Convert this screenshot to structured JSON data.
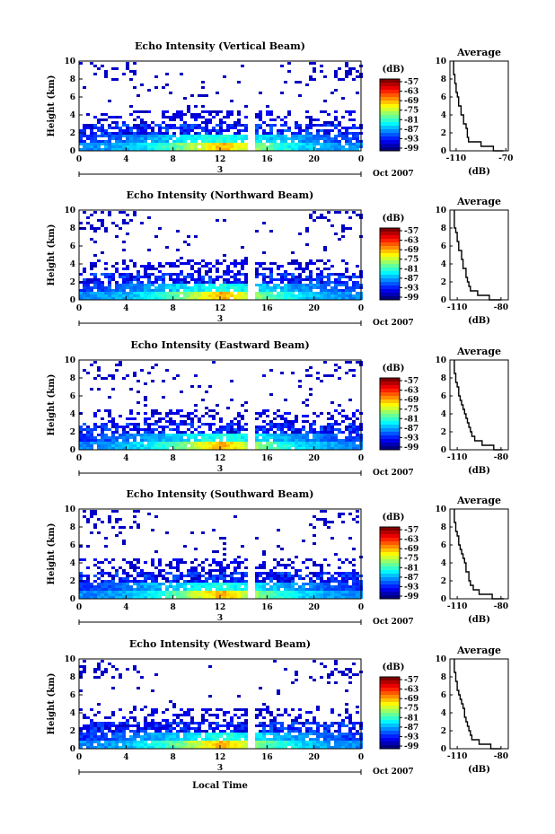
{
  "chart_data": [
    {
      "type": "heatmap",
      "title": "Echo Intensity (Vertical Beam)",
      "xlabel": "",
      "ylabel": "Height (km)",
      "xlim": [
        0,
        24
      ],
      "ylim": [
        0,
        10
      ],
      "xticks": [
        "0",
        "4",
        "8",
        "12",
        "16",
        "20",
        "0"
      ],
      "yticks": [
        "0",
        "2",
        "4",
        "6",
        "8",
        "10"
      ],
      "day_marker": "3",
      "date_label": "Oct 2007",
      "colorbar": {
        "unit": "(dB)",
        "ticks": [
          "-57",
          "-63",
          "-69",
          "-75",
          "-81",
          "-87",
          "-93",
          "-99"
        ]
      },
      "average_profile": {
        "title": "Average",
        "xlabel": "(dB)",
        "xticks": [
          "-110",
          "-70"
        ],
        "xlim": [
          -115,
          -68
        ],
        "yticks": [
          "0",
          "2",
          "4",
          "6",
          "8",
          "10"
        ],
        "heights": [
          0,
          0.5,
          1,
          1.5,
          2,
          2.5,
          3,
          3.5,
          4,
          4.5,
          5,
          5.5,
          6,
          6.5,
          7,
          7.5,
          8,
          8.5,
          9,
          9.5,
          10
        ],
        "values_db": [
          -72,
          -80,
          -90,
          -100,
          -101,
          -101,
          -102,
          -104,
          -104,
          -106,
          -106,
          -108,
          -108,
          -109,
          -110,
          -110,
          -111,
          -111,
          -112,
          -112,
          -112
        ]
      },
      "gap_hour": 14.5,
      "noise_top_heights_km": [
        8,
        10
      ]
    },
    {
      "type": "heatmap",
      "title": "Echo Intensity (Northward Beam)",
      "xlabel": "",
      "ylabel": "Height (km)",
      "xlim": [
        0,
        24
      ],
      "ylim": [
        0,
        10
      ],
      "xticks": [
        "0",
        "4",
        "8",
        "12",
        "16",
        "20",
        "0"
      ],
      "yticks": [
        "0",
        "2",
        "4",
        "6",
        "8",
        "10"
      ],
      "day_marker": "3",
      "date_label": "Oct 2007",
      "colorbar": {
        "unit": "(dB)",
        "ticks": [
          "-57",
          "-63",
          "-69",
          "-75",
          "-81",
          "-87",
          "-93",
          "-99"
        ]
      },
      "average_profile": {
        "title": "Average",
        "xlabel": "(dB)",
        "xticks": [
          "-110",
          "-80"
        ],
        "xlim": [
          -115,
          -75
        ],
        "yticks": [
          "0",
          "2",
          "4",
          "6",
          "8",
          "10"
        ],
        "heights": [
          0,
          0.5,
          1,
          1.5,
          2,
          2.5,
          3,
          3.5,
          4,
          4.5,
          5,
          5.5,
          6,
          6.5,
          7,
          7.5,
          8,
          8.5,
          9,
          9.5,
          10
        ],
        "values_db": [
          -80,
          -88,
          -96,
          -101,
          -102,
          -103,
          -104,
          -104,
          -106,
          -106,
          -107,
          -107,
          -109,
          -109,
          -110,
          -110,
          -111,
          -112,
          -112,
          -112,
          -112
        ]
      },
      "gap_hour": 14.5,
      "noise_top_heights_km": [
        8,
        10
      ]
    },
    {
      "type": "heatmap",
      "title": "Echo Intensity (Eastward Beam)",
      "xlabel": "",
      "ylabel": "Height (km)",
      "xlim": [
        0,
        24
      ],
      "ylim": [
        0,
        10
      ],
      "xticks": [
        "0",
        "4",
        "8",
        "12",
        "16",
        "20",
        "0"
      ],
      "yticks": [
        "0",
        "2",
        "4",
        "6",
        "8",
        "10"
      ],
      "day_marker": "3",
      "date_label": "Oct 2007",
      "colorbar": {
        "unit": "(dB)",
        "ticks": [
          "-57",
          "-63",
          "-69",
          "-75",
          "-81",
          "-87",
          "-93",
          "-99"
        ]
      },
      "average_profile": {
        "title": "Average",
        "xlabel": "(dB)",
        "xticks": [
          "-110",
          "-80"
        ],
        "xlim": [
          -115,
          -75
        ],
        "yticks": [
          "0",
          "2",
          "4",
          "6",
          "8",
          "10"
        ],
        "heights": [
          0,
          0.5,
          1,
          1.5,
          2,
          2.5,
          3,
          3.5,
          4,
          4.5,
          5,
          5.5,
          6,
          6.5,
          7,
          7.5,
          8,
          8.5,
          9,
          9.5,
          10
        ],
        "values_db": [
          -79,
          -85,
          -93,
          -98,
          -100,
          -101,
          -102,
          -103,
          -104,
          -105,
          -106,
          -107,
          -108,
          -109,
          -109,
          -110,
          -111,
          -111,
          -112,
          -112,
          -112
        ]
      },
      "gap_hour": 14.5,
      "noise_top_heights_km": [
        8,
        10
      ]
    },
    {
      "type": "heatmap",
      "title": "Echo Intensity (Southward Beam)",
      "xlabel": "",
      "ylabel": "Height (km)",
      "xlim": [
        0,
        24
      ],
      "ylim": [
        0,
        10
      ],
      "xticks": [
        "0",
        "4",
        "8",
        "12",
        "16",
        "20",
        "0"
      ],
      "yticks": [
        "0",
        "2",
        "4",
        "6",
        "8",
        "10"
      ],
      "day_marker": "3",
      "date_label": "Oct 2007",
      "colorbar": {
        "unit": "(dB)",
        "ticks": [
          "-57",
          "-63",
          "-69",
          "-75",
          "-81",
          "-87",
          "-93",
          "-99"
        ]
      },
      "average_profile": {
        "title": "Average",
        "xlabel": "(dB)",
        "xticks": [
          "-110",
          "-80"
        ],
        "xlim": [
          -115,
          -75
        ],
        "yticks": [
          "0",
          "2",
          "4",
          "6",
          "8",
          "10"
        ],
        "heights": [
          0,
          0.5,
          1,
          1.5,
          2,
          2.5,
          3,
          3.5,
          4,
          4.5,
          5,
          5.5,
          6,
          6.5,
          7,
          7.5,
          8,
          8.5,
          9,
          9.5,
          10
        ],
        "values_db": [
          -78,
          -86,
          -95,
          -99,
          -101,
          -102,
          -102,
          -104,
          -104,
          -105,
          -106,
          -107,
          -108,
          -109,
          -109,
          -110,
          -111,
          -111,
          -112,
          -112,
          -112
        ]
      },
      "gap_hour": 14.5,
      "noise_top_heights_km": [
        8,
        10
      ]
    },
    {
      "type": "heatmap",
      "title": "Echo Intensity (Westward Beam)",
      "xlabel": "Local Time",
      "ylabel": "Height (km)",
      "xlim": [
        0,
        24
      ],
      "ylim": [
        0,
        10
      ],
      "xticks": [
        "0",
        "4",
        "8",
        "12",
        "16",
        "20",
        "0"
      ],
      "yticks": [
        "0",
        "2",
        "4",
        "6",
        "8",
        "10"
      ],
      "day_marker": "3",
      "date_label": "Oct 2007",
      "colorbar": {
        "unit": "(dB)",
        "ticks": [
          "-57",
          "-63",
          "-69",
          "-75",
          "-81",
          "-87",
          "-93",
          "-99"
        ]
      },
      "average_profile": {
        "title": "Average",
        "xlabel": "(dB)",
        "xticks": [
          "-110",
          "-80"
        ],
        "xlim": [
          -115,
          -75
        ],
        "yticks": [
          "0",
          "2",
          "4",
          "6",
          "8",
          "10"
        ],
        "heights": [
          0,
          0.5,
          1,
          1.5,
          2,
          2.5,
          3,
          3.5,
          4,
          4.5,
          5,
          5.5,
          6,
          6.5,
          7,
          7.5,
          8,
          8.5,
          9,
          9.5,
          10
        ],
        "values_db": [
          -80,
          -87,
          -95,
          -100,
          -101,
          -102,
          -103,
          -104,
          -105,
          -105,
          -106,
          -107,
          -108,
          -109,
          -110,
          -110,
          -111,
          -111,
          -112,
          -112,
          -112
        ]
      },
      "gap_hour": 14.5,
      "noise_top_heights_km": [
        8,
        10
      ]
    }
  ]
}
